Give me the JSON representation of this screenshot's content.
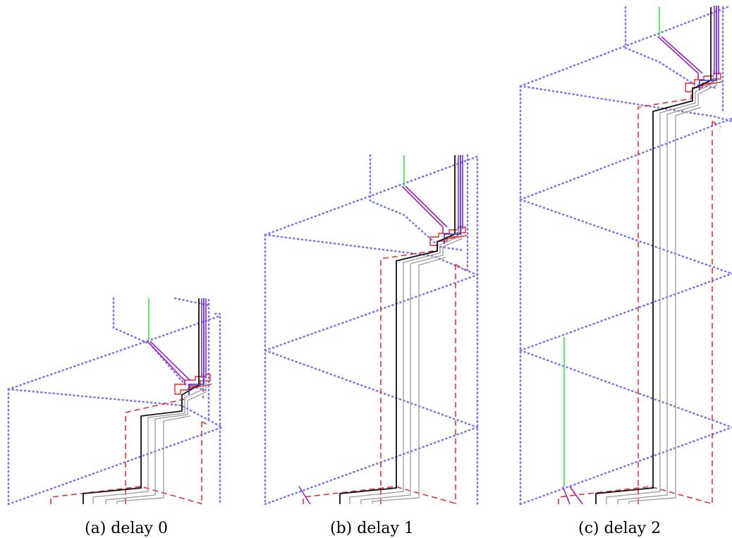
{
  "figure": {
    "subfigures": [
      {
        "caption": "(a) delay 0"
      },
      {
        "caption": "(b) delay 1"
      },
      {
        "caption": "(c) delay 2"
      }
    ]
  },
  "colors": {
    "dotted": "#7b7bef",
    "dashed": "#e8262a",
    "black": "#111111",
    "gray": "#9a9a9a",
    "purple": "#a020c0",
    "blue": "#2233dd",
    "green": "#33dd33"
  }
}
